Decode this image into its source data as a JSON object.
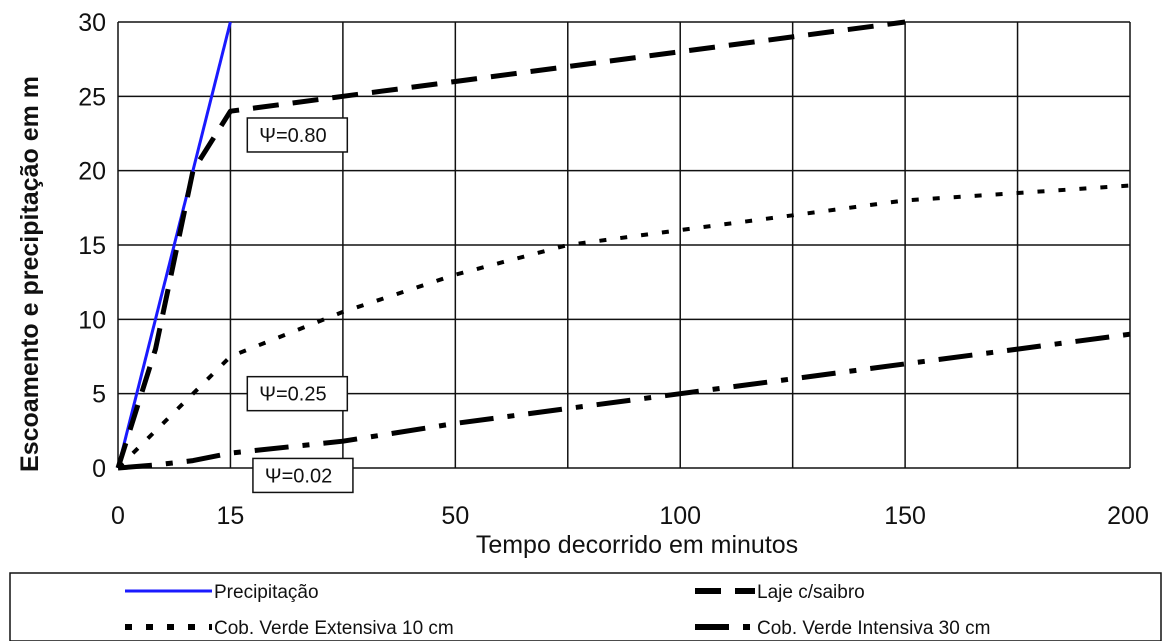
{
  "chart_data": {
    "type": "line",
    "xlabel": "Tempo decorrido em minutos",
    "ylabel": "Escoamento e precipitação em m",
    "xlim": [
      0,
      200
    ],
    "ylim": [
      0,
      30
    ],
    "x_ticks": [
      "0",
      "15",
      "50",
      "100",
      "150",
      "200"
    ],
    "y_ticks": [
      "0",
      "5",
      "10",
      "15",
      "20",
      "25",
      "30"
    ],
    "grid": true,
    "legend_position": "bottom",
    "series": [
      {
        "name": "Precipitação",
        "color": "#1a1aff",
        "style": "solid",
        "points": [
          [
            0,
            0
          ],
          [
            15,
            30
          ]
        ]
      },
      {
        "name": "Laje c/saibro",
        "color": "#000000",
        "style": "long-dash",
        "points": [
          [
            0,
            0
          ],
          [
            5,
            8
          ],
          [
            10,
            20
          ],
          [
            15,
            24
          ],
          [
            25,
            25
          ],
          [
            50,
            26
          ],
          [
            100,
            28
          ],
          [
            150,
            30
          ]
        ]
      },
      {
        "name": "Cob. Verde Extensiva 10 cm",
        "color": "#000000",
        "style": "short-dash",
        "points": [
          [
            0,
            0
          ],
          [
            10,
            5
          ],
          [
            15,
            7.5
          ],
          [
            25,
            10.5
          ],
          [
            50,
            13
          ],
          [
            75,
            15
          ],
          [
            100,
            16
          ],
          [
            125,
            17
          ],
          [
            150,
            18
          ],
          [
            175,
            18.5
          ],
          [
            200,
            19
          ]
        ]
      },
      {
        "name": "Cob. Verde Intensiva 30 cm",
        "color": "#000000",
        "style": "dash-dot",
        "points": [
          [
            0,
            0
          ],
          [
            5,
            0.2
          ],
          [
            10,
            0.5
          ],
          [
            15,
            1
          ],
          [
            25,
            1.8
          ],
          [
            50,
            3
          ],
          [
            75,
            4
          ],
          [
            100,
            5
          ],
          [
            125,
            6
          ],
          [
            150,
            7
          ],
          [
            175,
            8
          ],
          [
            200,
            9
          ]
        ]
      }
    ],
    "annotations": [
      {
        "text": "Ψ=0.80",
        "x": 16.5,
        "y": 22.4
      },
      {
        "text": "Ψ=0.25",
        "x": 16.5,
        "y": 5
      },
      {
        "text": "Ψ=0.02",
        "x": 17,
        "y": -0.5
      }
    ]
  }
}
